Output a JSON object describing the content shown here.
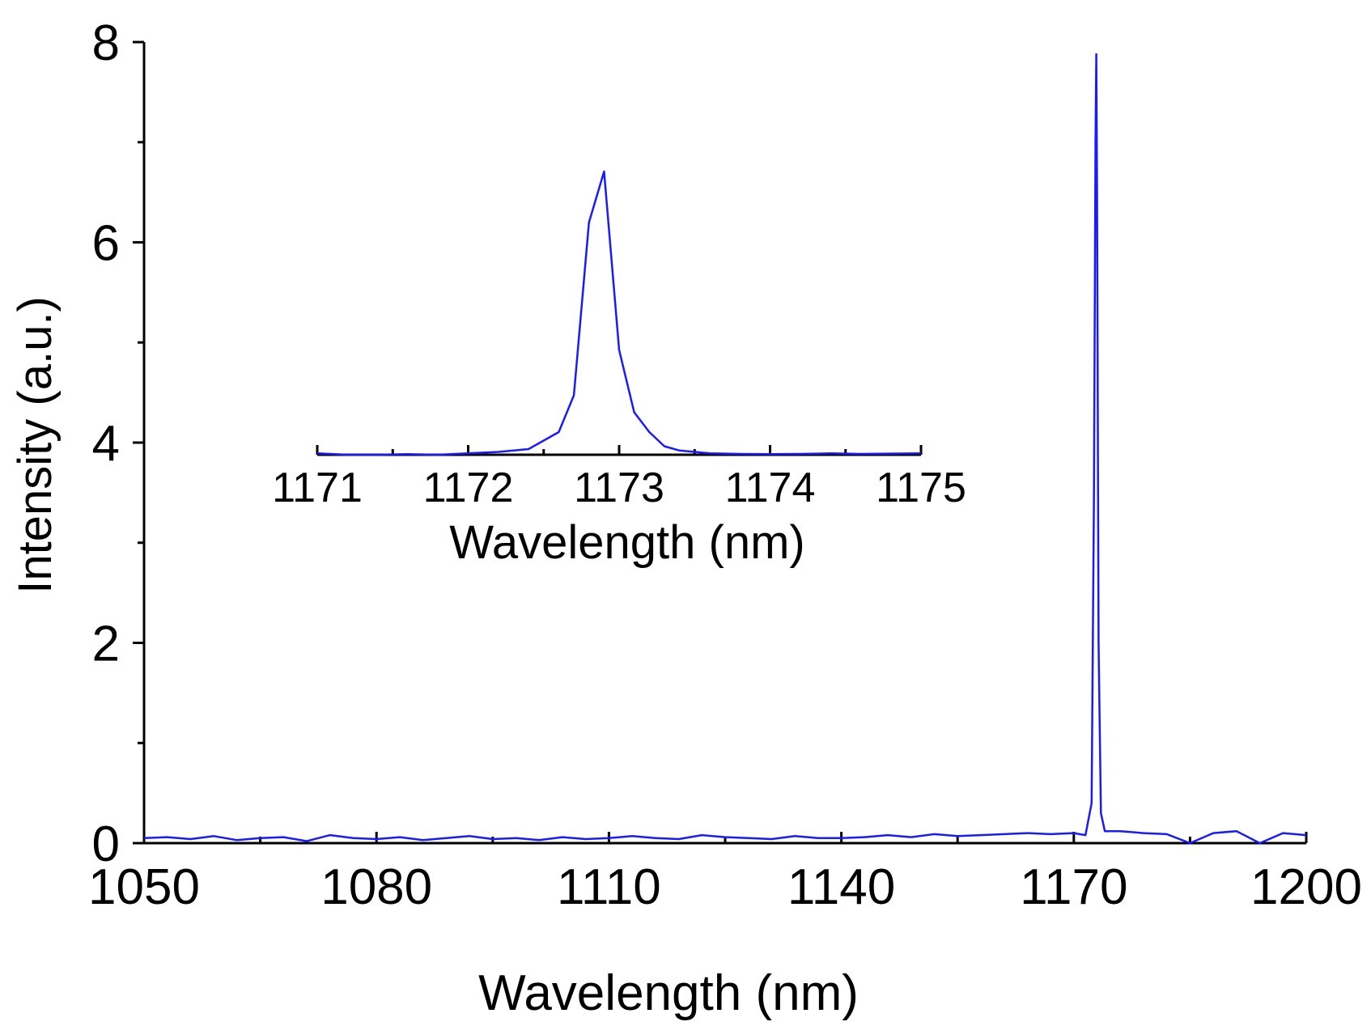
{
  "chart_data": [
    {
      "id": "main",
      "type": "line",
      "title": "",
      "xlabel": "Wavelength (nm)",
      "ylabel": "Intensity (a.u.)",
      "xlim": [
        1050,
        1200
      ],
      "ylim": [
        0,
        8
      ],
      "xticks": [
        1050,
        1080,
        1110,
        1140,
        1170,
        1200
      ],
      "yticks": [
        0,
        2,
        4,
        6,
        8
      ],
      "grid": false,
      "line_color": "#1a1aff",
      "series": [
        {
          "name": "spectrum",
          "x": [
            1050,
            1053,
            1056,
            1059,
            1062,
            1065,
            1068,
            1071,
            1074,
            1077,
            1080,
            1083,
            1086,
            1089,
            1092,
            1095,
            1098,
            1101,
            1104,
            1107,
            1110,
            1113,
            1116,
            1119,
            1122,
            1125,
            1128,
            1131,
            1134,
            1137,
            1140,
            1143,
            1146,
            1149,
            1152,
            1155,
            1158,
            1161,
            1164,
            1167,
            1170,
            1171.5,
            1172.3,
            1172.6,
            1172.8,
            1172.9,
            1173.0,
            1173.2,
            1173.5,
            1174,
            1176,
            1179,
            1182,
            1185,
            1188,
            1191,
            1194,
            1197,
            1200
          ],
          "y": [
            0.05,
            0.06,
            0.04,
            0.07,
            0.03,
            0.05,
            0.06,
            0.02,
            0.08,
            0.05,
            0.04,
            0.06,
            0.03,
            0.05,
            0.07,
            0.04,
            0.05,
            0.03,
            0.06,
            0.04,
            0.05,
            0.07,
            0.05,
            0.04,
            0.08,
            0.06,
            0.05,
            0.04,
            0.07,
            0.05,
            0.05,
            0.06,
            0.08,
            0.06,
            0.09,
            0.07,
            0.08,
            0.09,
            0.1,
            0.09,
            0.1,
            0.08,
            0.4,
            3.5,
            7.0,
            7.88,
            6.5,
            2.0,
            0.3,
            0.12,
            0.12,
            0.1,
            0.09,
            0.0,
            0.1,
            0.12,
            0.0,
            0.1,
            0.08
          ]
        }
      ]
    },
    {
      "id": "inset",
      "type": "line",
      "title": "",
      "xlabel": "Wavelength (nm)",
      "ylabel": "",
      "xlim": [
        1171,
        1175
      ],
      "ylim": [
        0,
        1
      ],
      "xticks": [
        1171,
        1172,
        1173,
        1174,
        1175
      ],
      "grid": false,
      "line_color": "#1a1aff",
      "series": [
        {
          "name": "zoomed peak",
          "x": [
            1171.0,
            1171.2,
            1171.4,
            1171.6,
            1171.8,
            1172.0,
            1172.2,
            1172.4,
            1172.6,
            1172.7,
            1172.8,
            1172.9,
            1173.0,
            1173.1,
            1173.2,
            1173.3,
            1173.4,
            1173.6,
            1173.8,
            1174.0,
            1174.2,
            1174.4,
            1174.6,
            1174.8,
            1175.0
          ],
          "y": [
            0.005,
            0.0,
            0.0,
            0.002,
            0.0,
            0.005,
            0.01,
            0.02,
            0.08,
            0.21,
            0.82,
            1.0,
            0.37,
            0.15,
            0.08,
            0.03,
            0.015,
            0.005,
            0.003,
            0.002,
            0.003,
            0.005,
            0.003,
            0.004,
            0.005
          ]
        }
      ]
    }
  ]
}
